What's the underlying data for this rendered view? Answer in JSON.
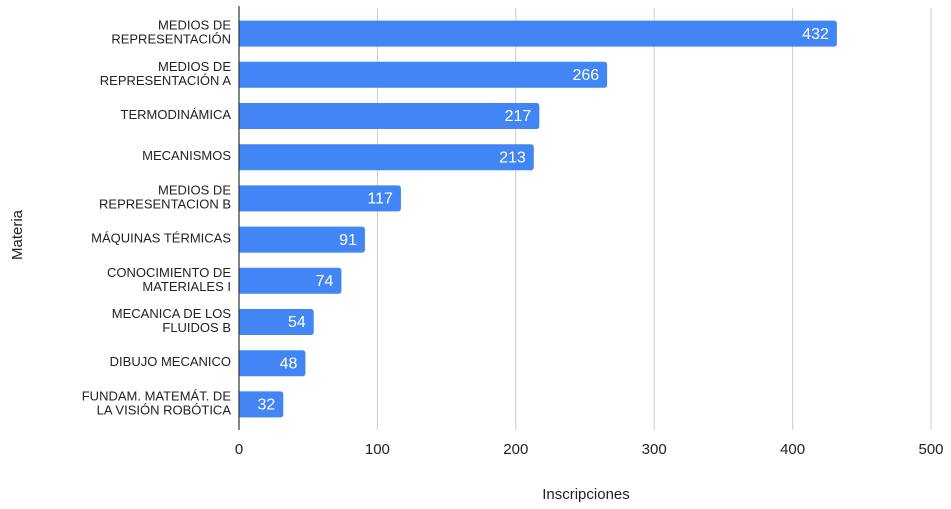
{
  "chart_data": {
    "type": "bar",
    "orientation": "horizontal",
    "x_label": "Inscripciones",
    "y_label": "Materia",
    "categories": [
      "MEDIOS DE\nREPRESENTACIÓN",
      "MEDIOS DE\nREPRESENTACIÓN A",
      "TERMODINÁMICA",
      "MECANISMOS",
      "MEDIOS DE\nREPRESENTACION B",
      "MÁQUINAS TÉRMICAS",
      "CONOCIMIENTO DE\nMATERIALES I",
      "MECANICA DE LOS\nFLUIDOS B",
      "DIBUJO MECANICO",
      "FUNDAM. MATEMÁT. DE\nLA VISIÓN ROBÓTICA"
    ],
    "values": [
      432,
      266,
      217,
      213,
      117,
      91,
      74,
      54,
      48,
      32
    ],
    "color": "#4285f4",
    "xlim": [
      0,
      500
    ],
    "xticks": [
      0,
      100,
      200,
      300,
      400,
      500
    ],
    "grid": true
  }
}
